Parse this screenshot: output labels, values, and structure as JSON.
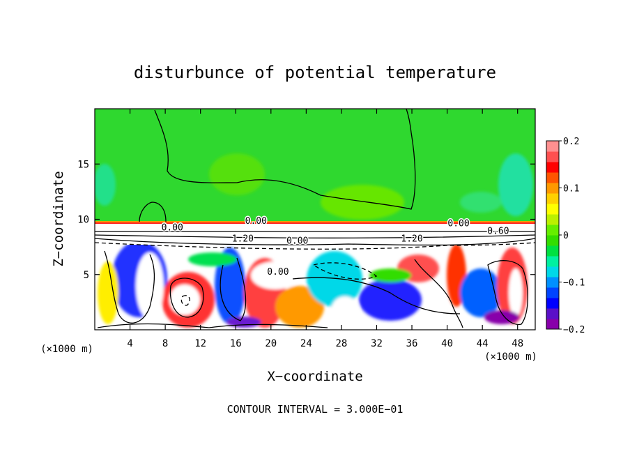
{
  "chart_data": {
    "type": "heatmap",
    "title": "disturbunce of potential temperature",
    "xlabel": "X−coordinate",
    "ylabel": "Z−coordinate",
    "x_unit_label_left": "(×1000 m)",
    "x_unit_label_right": "(×1000 m)",
    "footer": "CONTOUR INTERVAL = 3.000E−01",
    "xlim": [
      0,
      50
    ],
    "ylim": [
      0,
      20
    ],
    "x_ticks": [
      4,
      8,
      12,
      16,
      20,
      24,
      28,
      32,
      36,
      40,
      44,
      48
    ],
    "y_ticks": [
      5,
      10,
      15
    ],
    "colorbar": {
      "vmin": -0.2,
      "vmax": 0.2,
      "tick_values": [
        0.2,
        0.1,
        0,
        -0.1,
        -0.2
      ],
      "tick_labels": [
        "0.2",
        "0.1",
        "0",
        "−0.1",
        "−0.2"
      ],
      "colors": [
        "#8800aa",
        "#5a10c8",
        "#0000ff",
        "#0044ff",
        "#0090ff",
        "#00d8e8",
        "#00f0a0",
        "#00e040",
        "#33dd00",
        "#66ee00",
        "#bbf000",
        "#ffff00",
        "#ffd000",
        "#ff9900",
        "#ff5500",
        "#ff0000",
        "#ff5050",
        "#ff9090"
      ]
    },
    "contour_labels": [
      {
        "text": "0.00",
        "x": 41.3,
        "y": 9.7
      },
      {
        "text": "0.00",
        "x": 18.3,
        "y": 9.9
      },
      {
        "text": "0.00",
        "x": 20.8,
        "y": 5.3
      },
      {
        "text": "0.00",
        "x": 23.0,
        "y": 8.1
      },
      {
        "text": "1.20",
        "x": 16.8,
        "y": 8.3
      },
      {
        "text": "1.20",
        "x": 36.0,
        "y": 8.3
      },
      {
        "text": "0.00",
        "x": 8.8,
        "y": 9.3
      },
      {
        "text": "0.60",
        "x": 45.8,
        "y": 9.0
      }
    ]
  }
}
